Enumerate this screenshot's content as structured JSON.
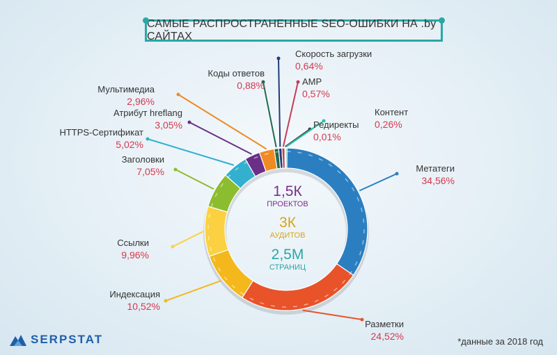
{
  "title": "САМЫЕ РАСПРОСТРАНЕННЫЕ SEO-ОШИБКИ НА .by САЙТАХ",
  "center": {
    "projects_value": "1,5К",
    "projects_label": "ПРОЕКТОВ",
    "audits_value": "3К",
    "audits_label": "АУДИТОВ",
    "pages_value": "2,5М",
    "pages_label": "СТРАНИЦ",
    "colors": {
      "projects": "#7a2f86",
      "audits": "#d6a41c",
      "pages": "#2aa7a4"
    }
  },
  "logo": "SERPSTAT",
  "footnote": "*данные за 2018 год",
  "chart_data": {
    "type": "pie",
    "title": "САМЫЕ РАСПРОСТРАНЕННЫЕ SEO-ОШИБКИ НА .by САЙТАХ",
    "slices": [
      {
        "label": "Метатеги",
        "value": 34.56,
        "display": "34,56%",
        "color": "#2b7fc1"
      },
      {
        "label": "Разметки",
        "value": 24.52,
        "display": "24,52%",
        "color": "#e8532a"
      },
      {
        "label": "Индексация",
        "value": 10.52,
        "display": "10,52%",
        "color": "#f4b81c"
      },
      {
        "label": "Ссылки",
        "value": 9.96,
        "display": "9,96%",
        "color": "#fbd142"
      },
      {
        "label": "Заголовки",
        "value": 7.05,
        "display": "7,05%",
        "color": "#8cbd2f"
      },
      {
        "label": "HTTPS-Сертификат",
        "value": 5.02,
        "display": "5,02%",
        "color": "#33b0cf"
      },
      {
        "label": "Атрибут hreflang",
        "value": 3.05,
        "display": "3,05%",
        "color": "#6a2f86"
      },
      {
        "label": "Мультимедиа",
        "value": 2.96,
        "display": "2,96%",
        "color": "#f08a24"
      },
      {
        "label": "Коды ответов",
        "value": 0.88,
        "display": "0,88%",
        "color": "#1f6b4e"
      },
      {
        "label": "Скорость загрузки",
        "value": 0.64,
        "display": "0,64%",
        "color": "#233a7a"
      },
      {
        "label": "AMP",
        "value": 0.57,
        "display": "0,57%",
        "color": "#c43c56"
      },
      {
        "label": "Редиректы",
        "value": 0.01,
        "display": "0,01%",
        "color": "#444444"
      },
      {
        "label": "Контент",
        "value": 0.26,
        "display": "0,26%",
        "color": "#2ac3a8"
      }
    ]
  }
}
